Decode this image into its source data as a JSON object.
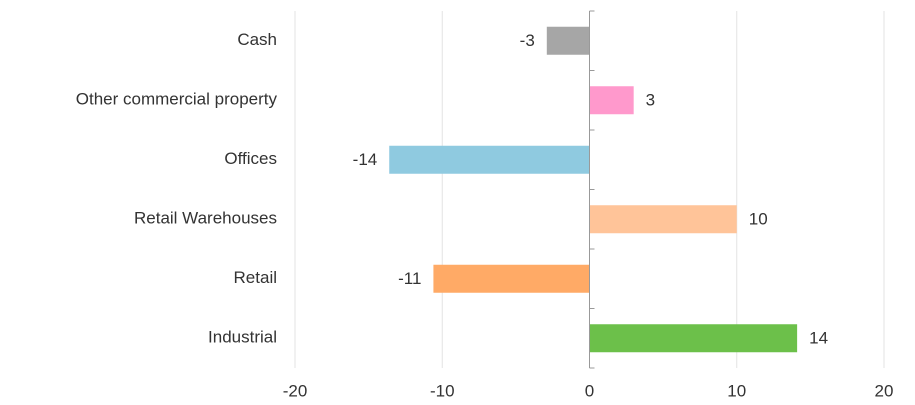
{
  "chart_data": {
    "type": "barh",
    "categories": [
      "Cash",
      "Other commercial property",
      "Offices",
      "Retail Warehouses",
      "Retail",
      "Industrial"
    ],
    "values": [
      -2.9,
      3,
      -13.6,
      10,
      -10.6,
      14.1
    ],
    "value_labels": [
      "-3",
      "3",
      "-14",
      "10",
      "-11",
      "14"
    ],
    "colors": [
      "#a6a6a6",
      "#ff99cc",
      "#8fcae0",
      "#ffc499",
      "#ffaa66",
      "#6cc04a"
    ],
    "xlim": [
      -20,
      20
    ],
    "xticks": [
      -20,
      -10,
      0,
      10,
      20
    ],
    "grid": true
  }
}
